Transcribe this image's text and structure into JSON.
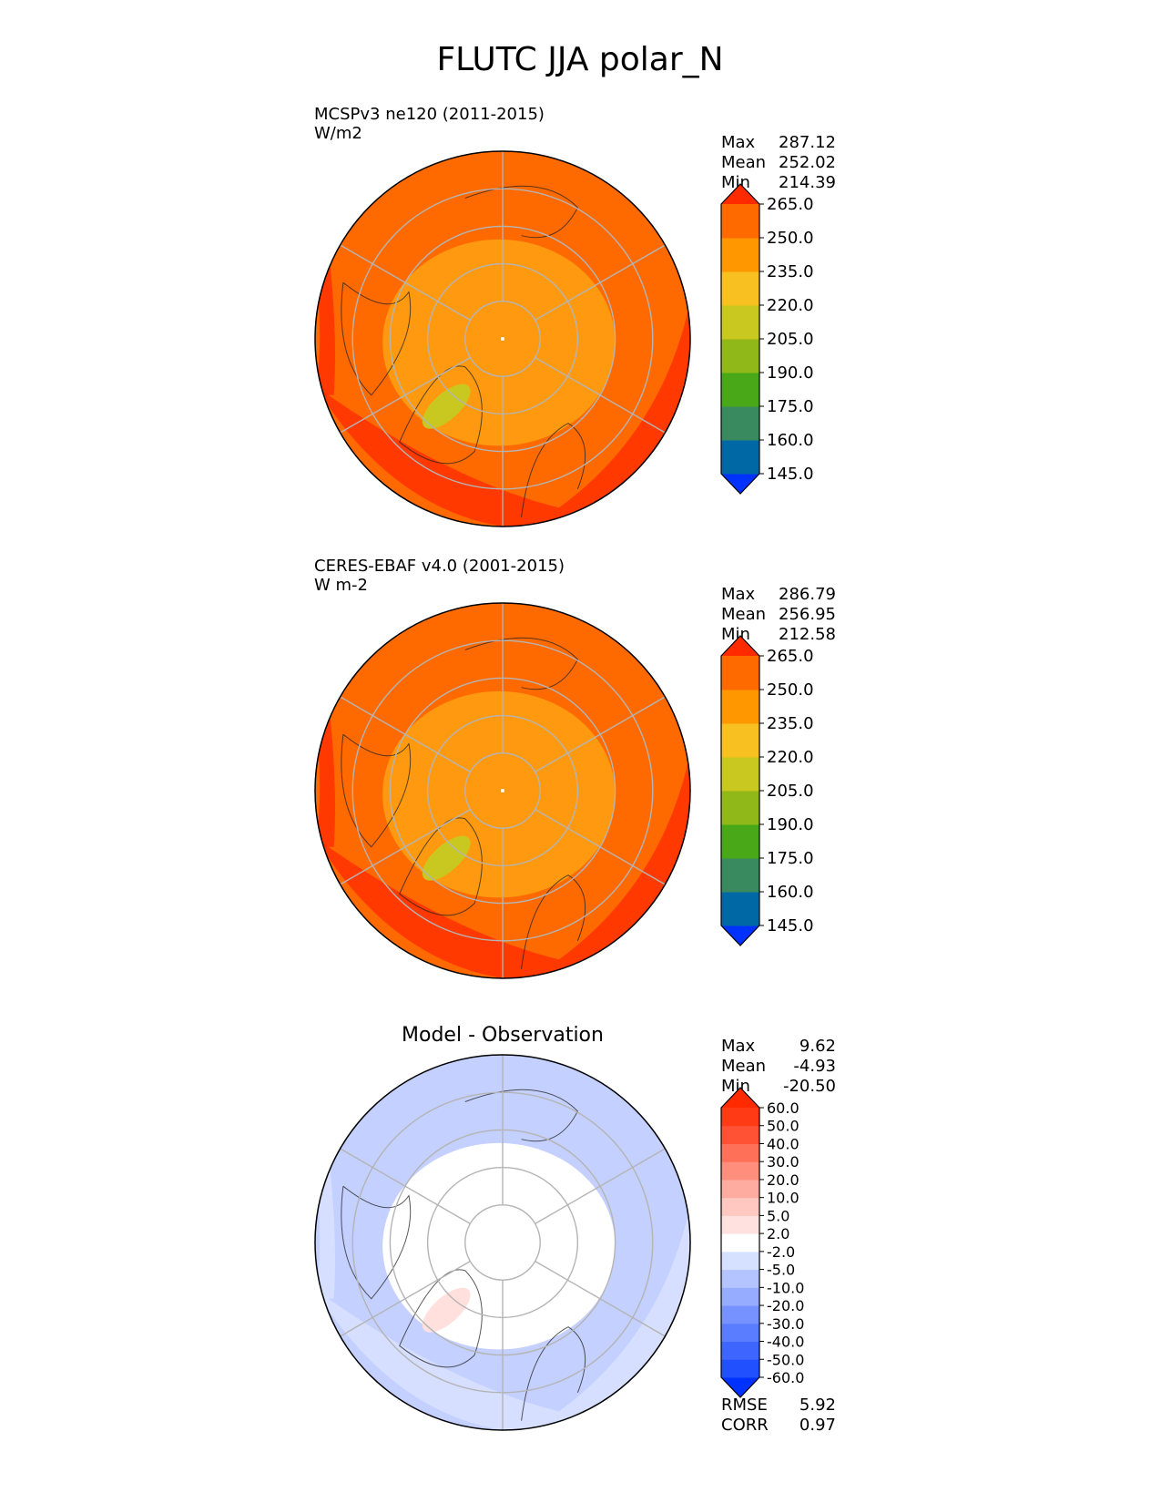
{
  "title": "FLUTC JJA polar_N",
  "chart_data": [
    {
      "type": "heatmap",
      "projection": "north-polar-stereographic",
      "title_left": "MCSPv3 ne120 (2011-2015)",
      "units": "W/m2",
      "stats": [
        {
          "label": "Max",
          "value": "287.12"
        },
        {
          "label": "Mean",
          "value": "252.02"
        },
        {
          "label": "Min",
          "value": "214.39"
        }
      ],
      "colorbar": {
        "levels": [
          "145.0",
          "160.0",
          "175.0",
          "190.0",
          "205.0",
          "220.0",
          "235.0",
          "250.0",
          "265.0"
        ],
        "colors": [
          "#0032ff",
          "#0068a4",
          "#3a8a60",
          "#48a818",
          "#90b818",
          "#c8c820",
          "#f8c020",
          "#ff9800",
          "#ff6a00",
          "#ff2a00"
        ],
        "extend": "both"
      },
      "field": {
        "pole": "#ff9a10",
        "midlat": "#ff6a00",
        "greenland": "#c8c820",
        "hot": "#ff2a00"
      }
    },
    {
      "type": "heatmap",
      "projection": "north-polar-stereographic",
      "title_left": "CERES-EBAF v4.0 (2001-2015)",
      "units": "W m-2",
      "stats": [
        {
          "label": "Max",
          "value": "286.79"
        },
        {
          "label": "Mean",
          "value": "256.95"
        },
        {
          "label": "Min",
          "value": "212.58"
        }
      ],
      "colorbar": {
        "levels": [
          "145.0",
          "160.0",
          "175.0",
          "190.0",
          "205.0",
          "220.0",
          "235.0",
          "250.0",
          "265.0"
        ],
        "colors": [
          "#0032ff",
          "#0068a4",
          "#3a8a60",
          "#48a818",
          "#90b818",
          "#c8c820",
          "#f8c020",
          "#ff9800",
          "#ff6a00",
          "#ff2a00"
        ],
        "extend": "both"
      },
      "field": {
        "pole": "#ff9a10",
        "midlat": "#ff6a00",
        "greenland": "#c8c820",
        "hot": "#ff2a00"
      }
    },
    {
      "type": "heatmap",
      "projection": "north-polar-stereographic",
      "title_center": "Model - Observation",
      "stats": [
        {
          "label": "Max",
          "value": "9.62"
        },
        {
          "label": "Mean",
          "value": "-4.93"
        },
        {
          "label": "Min",
          "value": "-20.50"
        }
      ],
      "colorbar": {
        "levels": [
          "-60.0",
          "-50.0",
          "-40.0",
          "-30.0",
          "-20.0",
          "-10.0",
          "-5.0",
          "-2.0",
          "2.0",
          "5.0",
          "10.0",
          "20.0",
          "30.0",
          "40.0",
          "50.0",
          "60.0"
        ],
        "colors": [
          "#0032ff",
          "#2050ff",
          "#3e66ff",
          "#5a7cff",
          "#7692ff",
          "#96acff",
          "#b4c4ff",
          "#d6e0ff",
          "#ffffff",
          "#ffe2e0",
          "#ffc8c0",
          "#ffaca0",
          "#ff8e7c",
          "#ff7058",
          "#ff5234",
          "#ff3a14",
          "#ff2a00"
        ],
        "extend": "both"
      },
      "metrics": [
        {
          "label": "RMSE",
          "value": "5.92"
        },
        {
          "label": "CORR",
          "value": "0.97"
        }
      ],
      "field": {
        "pole": "#ffffff",
        "midlat": "#c4d0ff",
        "greenland": "#ffe0dc",
        "hot": "#dce4ff"
      }
    }
  ]
}
